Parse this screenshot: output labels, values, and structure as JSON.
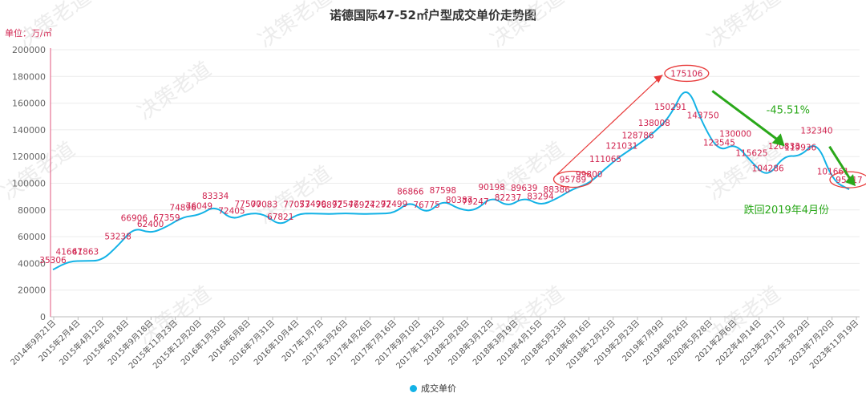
{
  "chart_data": {
    "type": "line",
    "title": "诺德国际47-52㎡户型成交单价走势图",
    "unit_label": "单位：万/㎡",
    "ylim": [
      0,
      200000
    ],
    "yticks": [
      0,
      20000,
      40000,
      60000,
      80000,
      100000,
      120000,
      140000,
      160000,
      180000,
      200000
    ],
    "xtick_labels": [
      "2014年9月21日",
      "2015年2月4日",
      "2015年4月12日",
      "2015年6月18日",
      "2015年9月18日",
      "2015年11月23日",
      "2015年12月20日",
      "2016年1月30日",
      "2016年6月8日",
      "2016年7月31日",
      "2016年10月4日",
      "2017年1月7日",
      "2017年3月26日",
      "2017年4月26日",
      "2017年7月16日",
      "2017年9月10日",
      "2017年11月25日",
      "2018年2月28日",
      "2018年3月12日",
      "2018年3月19日",
      "2018年4月15日",
      "2018年5月23日",
      "2018年6月16日",
      "2018年12月25日",
      "2019年2月23日",
      "2019年7月9日",
      "2019年8月26日",
      "2020年5月28日",
      "2021年2月6日",
      "2022年4月14日",
      "2023年2月17日",
      "2023年3月29日",
      "2023年7月20日",
      "2023年11月19日"
    ],
    "series": [
      {
        "name": "成交单价",
        "color": "#13b2e6",
        "values": [
          35306,
          41667,
          41863,
          42000,
          53238,
          66906,
          62400,
          67359,
          74896,
          76049,
          83334,
          72405,
          77500,
          77083,
          67821,
          77053,
          77490,
          76892,
          77547,
          76924,
          77292,
          77499,
          86866,
          76775,
          87598,
          80387,
          79247,
          90198,
          82237,
          89639,
          83294,
          88386,
          95789,
          99800,
          111065,
          121031,
          128786,
          138008,
          150291,
          175106,
          143750,
          123545,
          130000,
          115625,
          104286,
          120833,
          119936,
          132340,
          101661,
          95417
        ]
      }
    ],
    "data_labels": [
      {
        "i": 0,
        "text": "35306"
      },
      {
        "i": 1,
        "text": "41667"
      },
      {
        "i": 2,
        "text": "41863"
      },
      {
        "i": 4,
        "text": "53238"
      },
      {
        "i": 5,
        "text": "66906"
      },
      {
        "i": 6,
        "text": "62400"
      },
      {
        "i": 7,
        "text": "67359"
      },
      {
        "i": 8,
        "text": "74896"
      },
      {
        "i": 9,
        "text": "76049"
      },
      {
        "i": 10,
        "text": "83334"
      },
      {
        "i": 11,
        "text": "72405"
      },
      {
        "i": 12,
        "text": "77500"
      },
      {
        "i": 13,
        "text": "77083"
      },
      {
        "i": 14,
        "text": "67821"
      },
      {
        "i": 15,
        "text": "77053"
      },
      {
        "i": 16,
        "text": "77490"
      },
      {
        "i": 17,
        "text": "76892"
      },
      {
        "i": 18,
        "text": "77547"
      },
      {
        "i": 19,
        "text": "76924"
      },
      {
        "i": 20,
        "text": "77292"
      },
      {
        "i": 21,
        "text": "77499"
      },
      {
        "i": 22,
        "text": "86866"
      },
      {
        "i": 23,
        "text": "76775"
      },
      {
        "i": 24,
        "text": "87598"
      },
      {
        "i": 25,
        "text": "80387"
      },
      {
        "i": 26,
        "text": "79247"
      },
      {
        "i": 27,
        "text": "90198"
      },
      {
        "i": 28,
        "text": "82237"
      },
      {
        "i": 29,
        "text": "89639"
      },
      {
        "i": 30,
        "text": "83294"
      },
      {
        "i": 31,
        "text": "88386"
      },
      {
        "i": 32,
        "text": "95789",
        "circled": true
      },
      {
        "i": 33,
        "text": "99800"
      },
      {
        "i": 34,
        "text": "111065"
      },
      {
        "i": 35,
        "text": "121031"
      },
      {
        "i": 36,
        "text": "128786"
      },
      {
        "i": 37,
        "text": "138008"
      },
      {
        "i": 38,
        "text": "150291"
      },
      {
        "i": 39,
        "text": "175106",
        "circled": true
      },
      {
        "i": 40,
        "text": "143750"
      },
      {
        "i": 41,
        "text": "123545"
      },
      {
        "i": 42,
        "text": "130000"
      },
      {
        "i": 43,
        "text": "115625"
      },
      {
        "i": 44,
        "text": "104286"
      },
      {
        "i": 45,
        "text": "120833"
      },
      {
        "i": 46,
        "text": "119936"
      },
      {
        "i": 47,
        "text": "132340"
      },
      {
        "i": 48,
        "text": "101661"
      },
      {
        "i": 49,
        "text": "95417",
        "circled": true
      }
    ],
    "annotations": {
      "drop_pct": "-45.51%",
      "note": "跌回2019年4月份"
    },
    "colors": {
      "line": "#13b2e6",
      "data_label": "#d0234f",
      "axis": "#e0557d",
      "rise_arrow": "#e83a3a",
      "fall_arrow": "#2aa81a"
    },
    "watermark": "决策老道",
    "legend_position": "bottom"
  }
}
